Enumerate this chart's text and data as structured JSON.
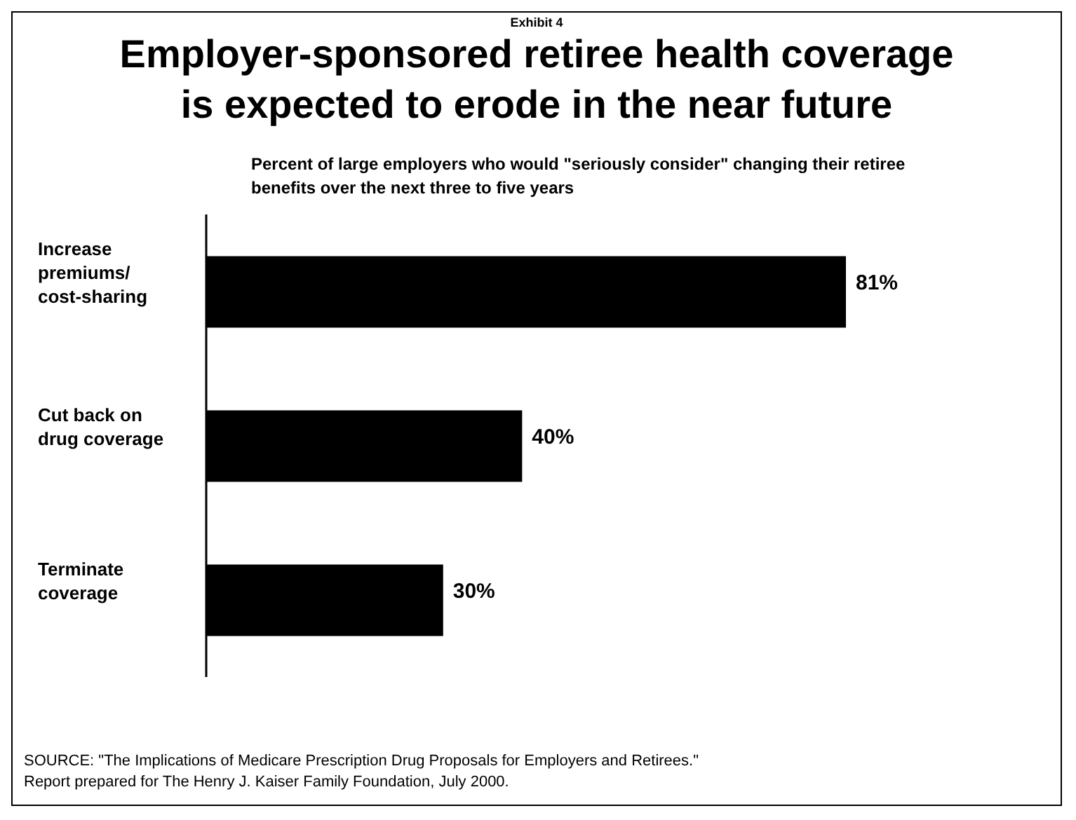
{
  "chart_data": {
    "type": "bar",
    "orientation": "horizontal",
    "title": "Employer-sponsored retiree health coverage is expected to erode in the near future",
    "subtitle": "Percent of large employers who would \"seriously consider\" changing their retiree benefits over the next three to five years",
    "annotations": [
      "Exhibit 4",
      "SOURCE:  \"The Implications of Medicare Prescription Drug Proposals for Employers and Retirees.\"",
      "Report prepared for The Henry J. Kaiser Family Foundation, July 2000."
    ],
    "categories": [
      "Increase premiums/ cost-sharing",
      "Cut back on drug coverage",
      "Terminate coverage"
    ],
    "values": [
      81,
      40,
      30
    ],
    "value_labels": [
      "81%",
      "40%",
      "30%"
    ],
    "color": "#000000",
    "tick_labels": "y",
    "grid": false
  }
}
